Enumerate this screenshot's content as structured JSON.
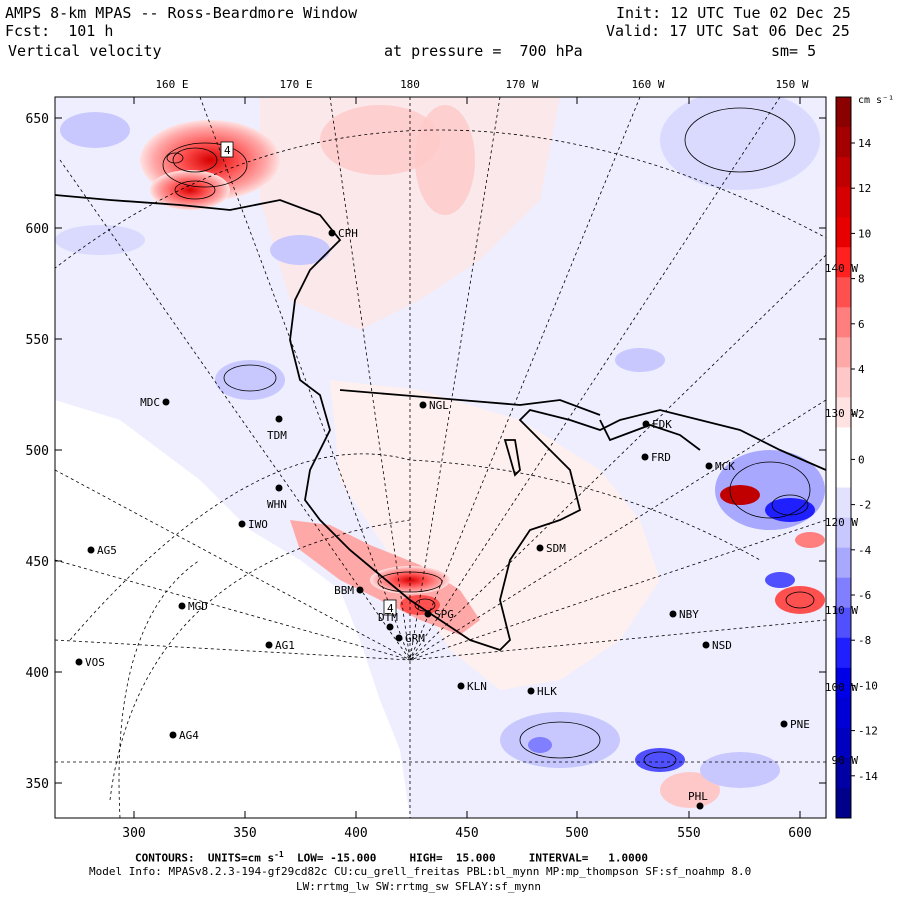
{
  "header": {
    "title": "AMPS 8-km MPAS -- Ross-Beardmore Window",
    "fcst": "Fcst:  101 h",
    "field": "Vertical velocity",
    "init": "Init: 12 UTC Tue 02 Dec 25",
    "valid": "Valid: 17 UTC Sat 06 Dec 25",
    "pressure": "at pressure =  700 hPa",
    "smooth": "sm= 5"
  },
  "axes": {
    "top_lon_labels": [
      "160 E",
      "170 E",
      "180",
      "170 W",
      "160 W",
      "150 W"
    ],
    "left_labels": [
      "650",
      "600",
      "550",
      "500",
      "450",
      "400",
      "350"
    ],
    "bottom_labels": [
      "300",
      "350",
      "400",
      "450",
      "500",
      "550",
      "600"
    ],
    "right_lon_labels": [
      "140 W",
      "130 W",
      "120 W",
      "110 W",
      "100 W",
      "90 W"
    ]
  },
  "colorbar": {
    "units": "cm s⁻¹",
    "labels": [
      "14",
      "12",
      "10",
      "8",
      "6",
      "4",
      "2",
      "0",
      "-2",
      "-4",
      "-6",
      "-8",
      "-10",
      "-12",
      "-14"
    ],
    "colors": [
      "#8b0000",
      "#a50000",
      "#c00000",
      "#d60000",
      "#e80000",
      "#ff2020",
      "#ff5050",
      "#ff7f7f",
      "#ffa8a8",
      "#ffc8c8",
      "#ffe2e2",
      "#ffffff",
      "#ffffff",
      "#e2e2ff",
      "#c8c8ff",
      "#a8a8ff",
      "#7f7fff",
      "#5050ff",
      "#2020ff",
      "#0000e8",
      "#0000d6",
      "#0000c0",
      "#0000a5",
      "#00008b"
    ]
  },
  "stations": [
    {
      "name": "CPH"
    },
    {
      "name": "NGL"
    },
    {
      "name": "MDC"
    },
    {
      "name": "TDM"
    },
    {
      "name": "FDK"
    },
    {
      "name": "FRD"
    },
    {
      "name": "MCK"
    },
    {
      "name": "WHN"
    },
    {
      "name": "IWO"
    },
    {
      "name": "AG5"
    },
    {
      "name": "SDM"
    },
    {
      "name": "BBM"
    },
    {
      "name": "DTM"
    },
    {
      "name": "SPG"
    },
    {
      "name": "GRM"
    },
    {
      "name": "MGD"
    },
    {
      "name": "NBY"
    },
    {
      "name": "AG1"
    },
    {
      "name": "NSD"
    },
    {
      "name": "VOS"
    },
    {
      "name": "KLN"
    },
    {
      "name": "HLK"
    },
    {
      "name": "AG4"
    },
    {
      "name": "PNE"
    },
    {
      "name": "PHL"
    }
  ],
  "contour_labels": [
    "4",
    "4"
  ],
  "footer": {
    "contours_prefix": "CONTOURS:  UNITS=cm s",
    "contours_sup": "-1",
    "contours_rest": "  LOW= -15.000     HIGH=  15.000     INTERVAL=   1.0000",
    "model_info": "Model Info: MPASv8.2.3-194-gf29cd82c CU:cu_grell_freitas PBL:bl_mynn MP:mp_thompson SF:sf_noahmp 8.0",
    "model_info2": "LW:rrtmg_lw SW:rrtmg_sw SFLAY:sf_mynn"
  }
}
